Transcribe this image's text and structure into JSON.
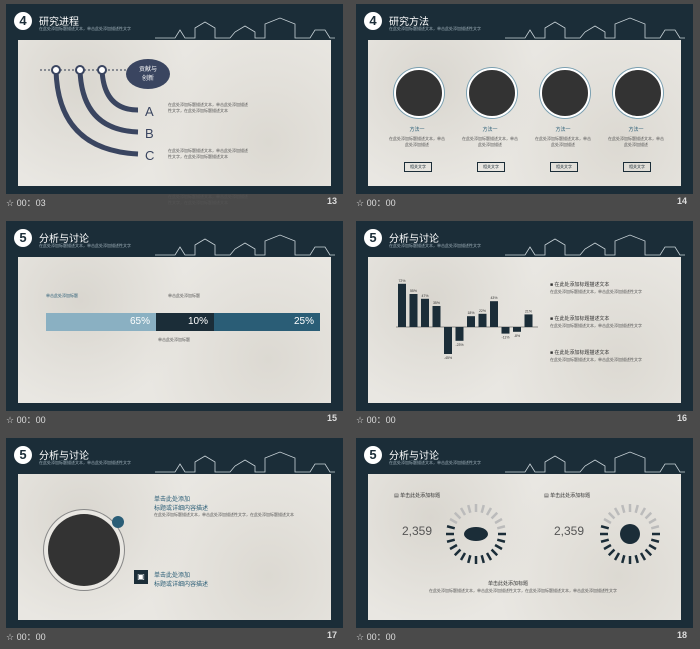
{
  "slides": [
    {
      "num": "4",
      "title": "研究进程",
      "sub": "在此处添加标题描述文本，单击此处添加描述性文字",
      "time": "00：03",
      "page": "13",
      "bubble": "贡献与\n创新",
      "labels": [
        "A",
        "B",
        "C"
      ],
      "text": [
        "在此处添加标题描述文本，单击此处添加描述性文字，在此处添加标题描述文本",
        "在此处添加标题描述文本，单击此处添加描述性文字，在此处添加标题描述文本",
        "在此处添加标题描述文本，单击此处添加描述性文字，在此处添加标题描述文本"
      ]
    },
    {
      "num": "4",
      "title": "研究方法",
      "sub": "在此处添加标题描述文本，单击此处添加描述性文字",
      "time": "00：00",
      "page": "14",
      "methods": [
        "方法一",
        "方法一",
        "方法一",
        "方法一"
      ],
      "button": "相关文字",
      "desc": "在此处添加标题描述文本，单击此处添加描述"
    },
    {
      "num": "5",
      "title": "分析与讨论",
      "sub": "在此处添加标题描述文本，单击此处添加描述性文字",
      "time": "00：00",
      "page": "15",
      "bars": [
        {
          "label": "65%",
          "value": 65
        },
        {
          "label": "10%",
          "value": 10
        },
        {
          "label": "25%",
          "value": 25
        }
      ],
      "t1": "单击此处添加标题",
      "t2": "单击此处添加标题",
      "t3": "单击此处添加标题"
    },
    {
      "num": "5",
      "title": "分析与讨论",
      "sub": "在此处添加标题描述文本，单击此处添加描述性文字",
      "time": "00：00",
      "page": "16",
      "chart_data": {
        "type": "bar",
        "values": [
          72,
          55,
          47,
          35,
          -45,
          -23,
          18,
          22,
          43,
          -11,
          -8,
          21
        ],
        "labels": [
          "72%",
          "55%",
          "47%",
          "35%",
          "-45%",
          "-23%",
          "18%",
          "22%",
          "43%",
          "-11%",
          "-8%",
          "21%"
        ]
      },
      "items": [
        "在此处添加标题描述文本",
        "在此处添加标题描述文本",
        "在此处添加标题描述文本"
      ]
    },
    {
      "num": "5",
      "title": "分析与讨论",
      "sub": "在此处添加标题描述文本，单击此处添加描述性文字",
      "time": "00：00",
      "page": "17",
      "h1": "单击此处添加\n标题或详细内容描述",
      "h2": "单击此处添加\n标题或详细内容描述"
    },
    {
      "num": "5",
      "title": "分析与讨论",
      "sub": "在此处添加标题描述文本，单击此处添加描述性文字",
      "time": "00：00",
      "page": "18",
      "k1": "单击此处添加标题",
      "k2": "单击此处添加标题",
      "v1": "2,359",
      "v2": "2,359",
      "center": "单击此处添加标题"
    }
  ]
}
